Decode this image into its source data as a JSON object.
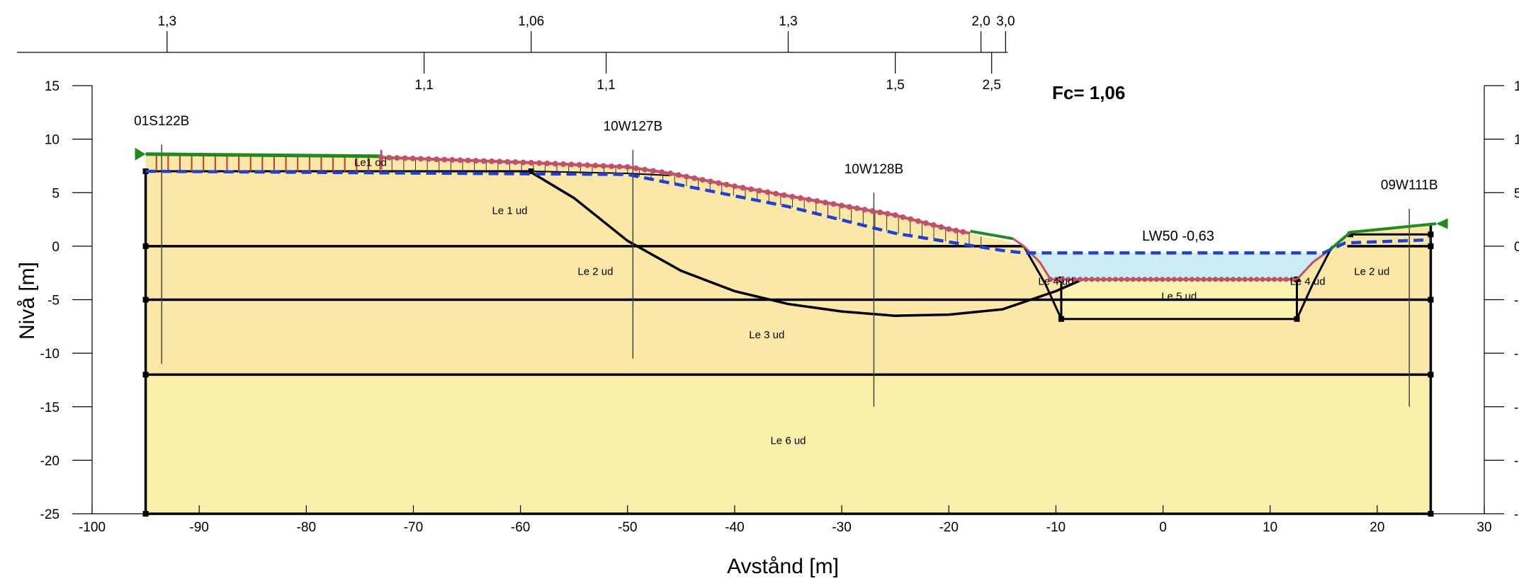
{
  "chart_data": {
    "type": "cross-section",
    "xlabel": "Avstånd [m]",
    "ylabel": "Nivå [m]",
    "xlim": [
      -100,
      30
    ],
    "ylim": [
      -25,
      15
    ],
    "x_ticks": [
      "-100",
      "-90",
      "-80",
      "-70",
      "-60",
      "-50",
      "-40",
      "-30",
      "-20",
      "-10",
      "0",
      "10",
      "20",
      "30"
    ],
    "y_ticks": [
      "15",
      "10",
      "5",
      "0",
      "-5",
      "-10",
      "-15",
      "-20",
      "-25"
    ],
    "fc_label": "Fc= 1,06",
    "water_level_label": "LW50 -0,63",
    "water_level": -0.63,
    "top_scale": {
      "upper": [
        {
          "x": -93,
          "label": "1,3"
        },
        {
          "x": -59,
          "label": "1,06"
        },
        {
          "x": -35,
          "label": "1,3"
        },
        {
          "x": -17,
          "label": "2,0"
        },
        {
          "x": -14.7,
          "label": "3,0"
        }
      ],
      "lower": [
        {
          "x": -69,
          "label": "1,1"
        },
        {
          "x": -52,
          "label": "1,1"
        },
        {
          "x": -25,
          "label": "1,5"
        },
        {
          "x": -16,
          "label": "2,5"
        }
      ]
    },
    "boreholes": [
      {
        "name": "01S122B",
        "x": -93.5,
        "top": 8,
        "bottom": -11
      },
      {
        "name": "10W127B",
        "x": -49.5,
        "top": 7.5,
        "bottom": -10.5
      },
      {
        "name": "10W128B",
        "x": -27,
        "top": 3.5,
        "bottom": -15
      },
      {
        "name": "09W111B",
        "x": 23,
        "top": 2,
        "bottom": -15
      }
    ],
    "layers": [
      {
        "name": "Le1 od",
        "x": -74,
        "y": 7.5
      },
      {
        "name": "Le 1 ud",
        "x": -61,
        "y": 3
      },
      {
        "name": "Le 2 ud",
        "x": -53,
        "y": -2.7
      },
      {
        "name": "Le 3 ud",
        "x": -37,
        "y": -8.6
      },
      {
        "name": "Le 4 ud",
        "x": -10,
        "y": -3.6
      },
      {
        "name": "Le 5 ud",
        "x": 1.5,
        "y": -5
      },
      {
        "name": "Le 4 ud",
        "x": 13.5,
        "y": -3.6
      },
      {
        "name": "Le 2 ud",
        "x": 19.5,
        "y": -2.7
      },
      {
        "name": "Le 6 ud",
        "x": -35,
        "y": -18.5
      }
    ],
    "ground_surface": [
      [
        -95,
        8.5
      ],
      [
        -73,
        8.3
      ],
      [
        -59,
        7.8
      ],
      [
        -50,
        7.4
      ],
      [
        -46,
        6.8
      ],
      [
        -40,
        5.6
      ],
      [
        -30,
        3.8
      ],
      [
        -25,
        2.9
      ],
      [
        -20,
        1.6
      ],
      [
        -17,
        0.9
      ],
      [
        -15,
        0.6
      ],
      [
        -13,
        0
      ],
      [
        -11.5,
        -1.5
      ],
      [
        -10.5,
        -3.1
      ],
      [
        12.5,
        -3.1
      ],
      [
        14,
        -1.5
      ],
      [
        15.5,
        -0.4
      ],
      [
        17.5,
        1.3
      ],
      [
        25.5,
        2
      ]
    ],
    "groundwater": [
      [
        -95,
        7
      ],
      [
        -50,
        6.7
      ],
      [
        -35,
        3.7
      ],
      [
        -25,
        1.2
      ],
      [
        -20,
        0.4
      ],
      [
        -15,
        -0.4
      ],
      [
        -13,
        -0.63
      ],
      [
        15,
        -0.63
      ],
      [
        17,
        0.3
      ],
      [
        25,
        0.6
      ]
    ],
    "layer_boundaries": [
      0,
      -5,
      -12,
      -25
    ],
    "slip_surface": [
      [
        -59,
        6.9
      ],
      [
        -55,
        4.5
      ],
      [
        -50,
        0.5
      ],
      [
        -45,
        -2.3
      ],
      [
        -40,
        -4.2
      ],
      [
        -35,
        -5.4
      ],
      [
        -30,
        -6.1
      ],
      [
        -25,
        -6.5
      ],
      [
        -20,
        -6.4
      ],
      [
        -15,
        -5.9
      ],
      [
        -10,
        -4.2
      ],
      [
        -7.5,
        -3.1
      ]
    ]
  }
}
